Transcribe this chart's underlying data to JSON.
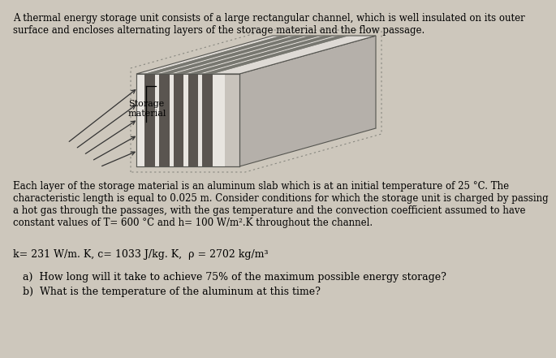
{
  "background_color": "#cdc7bc",
  "title_text": "A thermal energy storage unit consists of a large rectangular channel, which is well insulated on its outer\nsurface and encloses alternating layers of the storage material and the flow passage.",
  "body_text": "Each layer of the storage material is an aluminum slab which is at an initial temperature of 25 °C. The\ncharacteristic length is equal to 0.025 m. Consider conditions for which the storage unit is charged by passing\na hot gas through the passages, with the gas temperature and the convection coefficient assumed to have\nconstant values of T= 600 °C and h= 100 W/m².K throughout the channel.",
  "params_text": "k= 231 W/m. K, c= 1033 J/kg. K,  ρ = 2702 kg/m³",
  "qa_text_a": "   a)  How long will it take to achieve 75% of the maximum possible energy storage?",
  "qa_text_b": "   b)  What is the temperature of the aluminum at this time?",
  "label_storage": "Storage\nmaterial",
  "font_size_title": 8.5,
  "font_size_body": 8.5,
  "font_size_params": 9.0,
  "font_size_qa": 9.0,
  "font_size_label": 8.0
}
